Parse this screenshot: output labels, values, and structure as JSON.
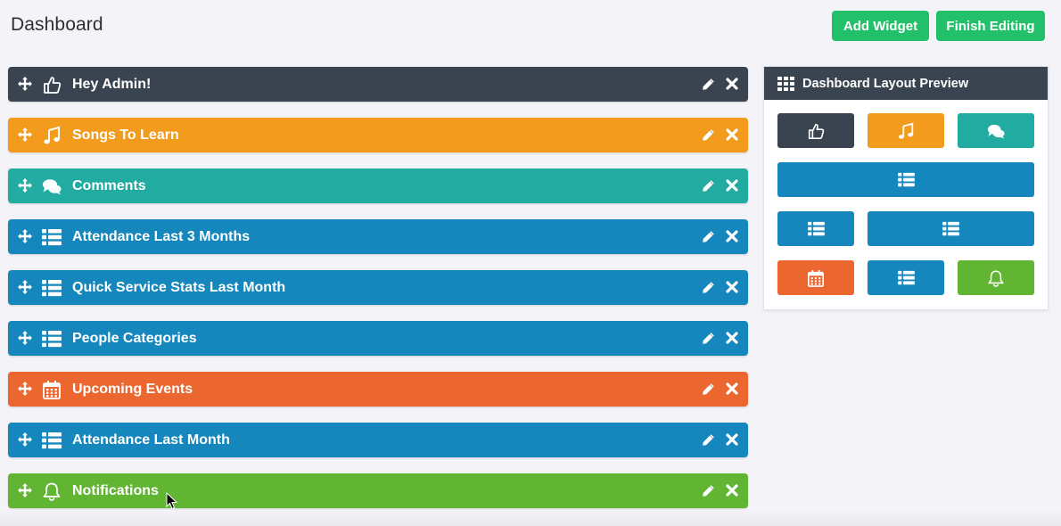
{
  "header": {
    "title": "Dashboard",
    "add_widget_label": "Add Widget",
    "finish_editing_label": "Finish Editing"
  },
  "colors": {
    "dark": "#3a4350",
    "orange": "#f29b1d",
    "teal": "#22aba0",
    "blue": "#1687bd",
    "red_orange": "#ec6630",
    "green": "#62b533",
    "button_green": "#22c06b"
  },
  "widgets": [
    {
      "title": "Hey Admin!",
      "icon": "thumbs-up-icon",
      "color": "#3a4350"
    },
    {
      "title": "Songs To Learn",
      "icon": "music-note-icon",
      "color": "#f29b1d"
    },
    {
      "title": "Comments",
      "icon": "comments-icon",
      "color": "#22aba0"
    },
    {
      "title": "Attendance Last 3 Months",
      "icon": "list-icon",
      "color": "#1687bd"
    },
    {
      "title": "Quick Service Stats Last Month",
      "icon": "list-icon",
      "color": "#1687bd"
    },
    {
      "title": "People Categories",
      "icon": "list-icon",
      "color": "#1687bd"
    },
    {
      "title": "Upcoming Events",
      "icon": "calendar-icon",
      "color": "#ec6630"
    },
    {
      "title": "Attendance Last Month",
      "icon": "list-icon",
      "color": "#1687bd"
    },
    {
      "title": "Notifications",
      "icon": "bell-icon",
      "color": "#62b533"
    }
  ],
  "preview": {
    "title": "Dashboard Layout Preview",
    "tiles": [
      {
        "icon": "thumbs-up-icon",
        "color": "#3a4350"
      },
      {
        "icon": "music-note-icon",
        "color": "#f29b1d"
      },
      {
        "icon": "comments-icon",
        "color": "#22aba0"
      },
      {
        "icon": "list-icon",
        "color": "#1687bd"
      },
      {
        "icon": "list-icon",
        "color": "#1687bd"
      },
      {
        "icon": "list-icon",
        "color": "#1687bd"
      },
      {
        "icon": "calendar-icon",
        "color": "#ec6630"
      },
      {
        "icon": "list-icon",
        "color": "#1687bd"
      },
      {
        "icon": "bell-icon",
        "color": "#62b533"
      }
    ]
  }
}
